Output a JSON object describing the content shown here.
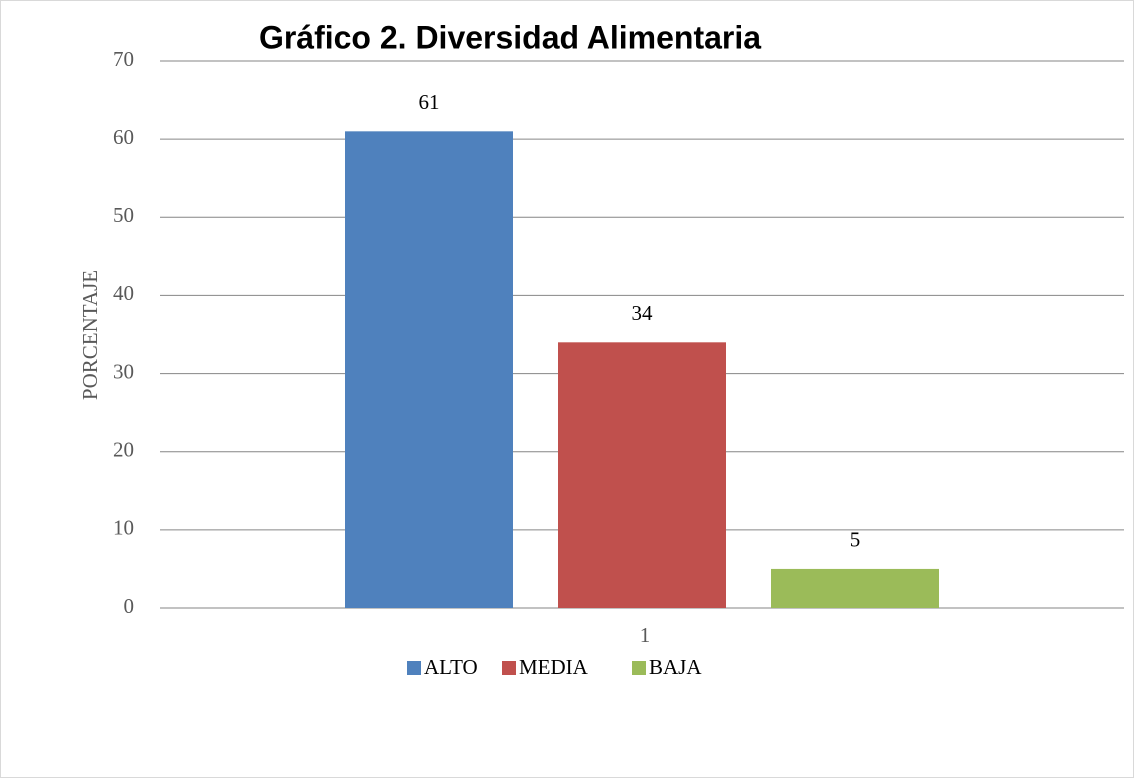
{
  "chart_data": {
    "type": "bar",
    "title": "Gráfico 2. Diversidad Alimentaria",
    "y_label": "PORCENTAJE",
    "categories": [
      "1"
    ],
    "series": [
      {
        "name": "ALTO",
        "color": "#4f81bd",
        "values": [
          61
        ]
      },
      {
        "name": "MEDIA",
        "color": "#c0504d",
        "values": [
          34
        ]
      },
      {
        "name": "BAJA",
        "color": "#9bbb59",
        "values": [
          5
        ]
      }
    ],
    "ylim": [
      0,
      70
    ],
    "yticks": [
      0,
      10,
      20,
      30,
      40,
      50,
      60,
      70
    ],
    "grid": true,
    "legend": "bottom"
  }
}
